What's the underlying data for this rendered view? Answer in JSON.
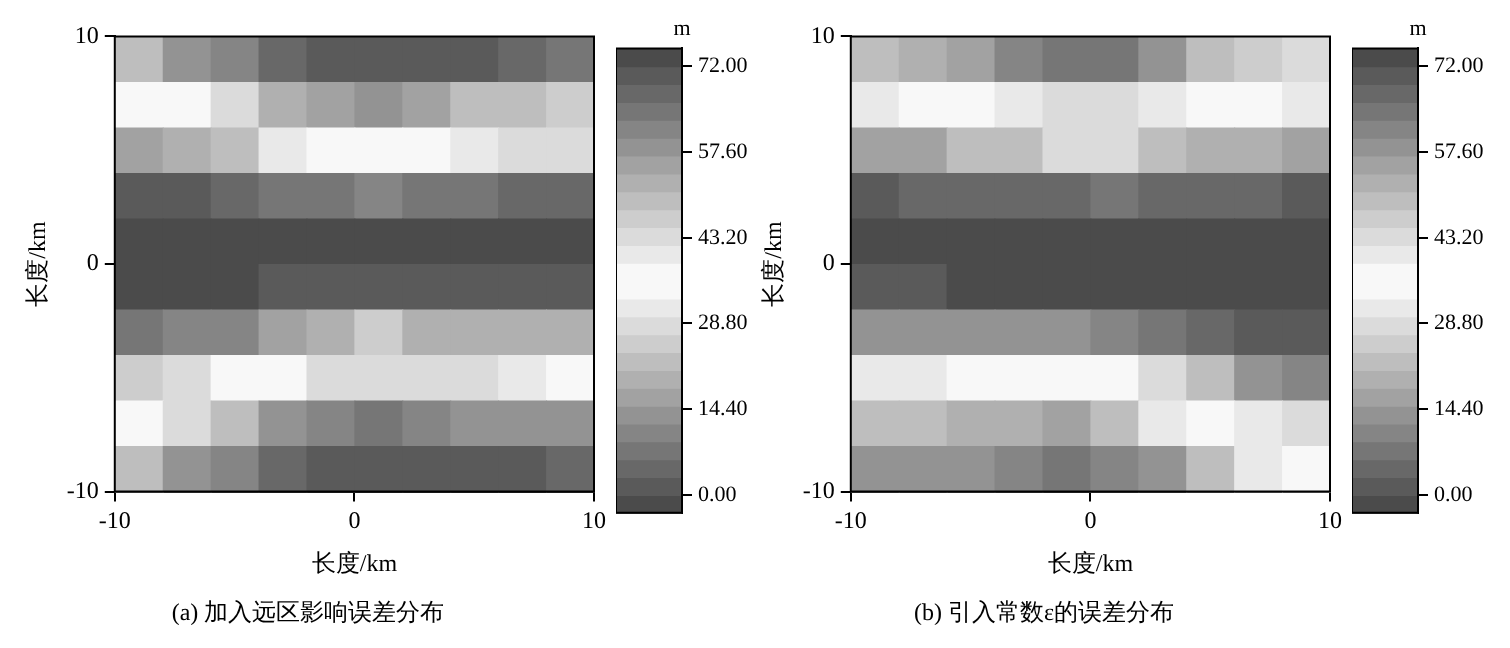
{
  "chart_data": [
    {
      "type": "heatmap",
      "title": "(a) 加入远区影响误差分布",
      "xlabel": "长度/km",
      "ylabel": "长度/km",
      "clabel": "m",
      "xlim": [
        -10,
        10
      ],
      "xticks": [
        -10,
        0,
        10
      ],
      "ylim": [
        -10,
        10
      ],
      "yticks": [
        -10,
        0,
        10
      ],
      "clim": [
        -3,
        75
      ],
      "cticks": [
        {
          "value": 0,
          "label": "0.00"
        },
        {
          "value": 14.4,
          "label": "14.40"
        },
        {
          "value": 28.8,
          "label": "28.80"
        },
        {
          "value": 43.2,
          "label": "43.20"
        },
        {
          "value": 57.6,
          "label": "57.60"
        },
        {
          "value": 72,
          "label": "72.00"
        }
      ],
      "cells": [
        [
          48,
          58,
          61,
          67,
          70,
          71,
          70,
          69,
          67,
          65
        ],
        [
          36,
          36,
          44,
          52,
          55,
          58,
          55,
          50,
          50,
          47
        ],
        [
          56,
          51,
          48,
          39,
          36,
          36,
          36,
          39,
          44,
          44
        ],
        [
          69,
          69,
          67,
          64,
          64,
          61,
          64,
          64,
          67,
          67
        ],
        [
          72,
          72,
          72,
          72,
          72,
          72,
          72,
          72,
          72,
          72
        ],
        [
          72,
          72,
          72,
          71,
          71,
          71,
          71,
          71,
          71,
          71
        ],
        [
          64,
          60,
          60,
          55,
          51,
          47,
          51,
          51,
          51,
          51
        ],
        [
          47,
          43,
          36,
          36,
          43,
          43,
          43,
          43,
          40,
          36
        ],
        [
          36,
          43,
          50,
          59,
          61,
          64,
          61,
          59,
          59,
          58
        ],
        [
          50,
          58,
          61,
          67,
          70,
          70,
          70,
          69,
          69,
          67
        ]
      ]
    },
    {
      "type": "heatmap",
      "title": "(b) 引入常数ε的误差分布",
      "xlabel": "长度/km",
      "ylabel": "长度/km",
      "clabel": "m",
      "xlim": [
        -10,
        10
      ],
      "xticks": [
        -10,
        0,
        10
      ],
      "ylim": [
        -10,
        10
      ],
      "yticks": [
        -10,
        0,
        10
      ],
      "clim": [
        -3,
        75
      ],
      "cticks": [
        {
          "value": 0,
          "label": "0.00"
        },
        {
          "value": 14.4,
          "label": "14.40"
        },
        {
          "value": 28.8,
          "label": "28.80"
        },
        {
          "value": 43.2,
          "label": "43.20"
        },
        {
          "value": 57.6,
          "label": "57.60"
        },
        {
          "value": 72,
          "label": "72.00"
        }
      ],
      "cells": [
        [
          49,
          52,
          55,
          61,
          64,
          64,
          58,
          50,
          47,
          43
        ],
        [
          40,
          36,
          36,
          39,
          43,
          43,
          40,
          36,
          36,
          39
        ],
        [
          56,
          56,
          50,
          48,
          43,
          43,
          48,
          51,
          51,
          56
        ],
        [
          71,
          68,
          68,
          66,
          66,
          64,
          66,
          66,
          66,
          69
        ],
        [
          72,
          72,
          72,
          72,
          72,
          72,
          72,
          72,
          72,
          72
        ],
        [
          71,
          71,
          72,
          72,
          72,
          72,
          72,
          72,
          72,
          72
        ],
        [
          58,
          58,
          58,
          58,
          58,
          60,
          64,
          67,
          69,
          69
        ],
        [
          40,
          40,
          36,
          36,
          36,
          36,
          43,
          49,
          58,
          60
        ],
        [
          49,
          49,
          52,
          52,
          56,
          50,
          42,
          36,
          39,
          44
        ],
        [
          59,
          59,
          59,
          61,
          64,
          61,
          58,
          48,
          42,
          36
        ]
      ]
    }
  ]
}
